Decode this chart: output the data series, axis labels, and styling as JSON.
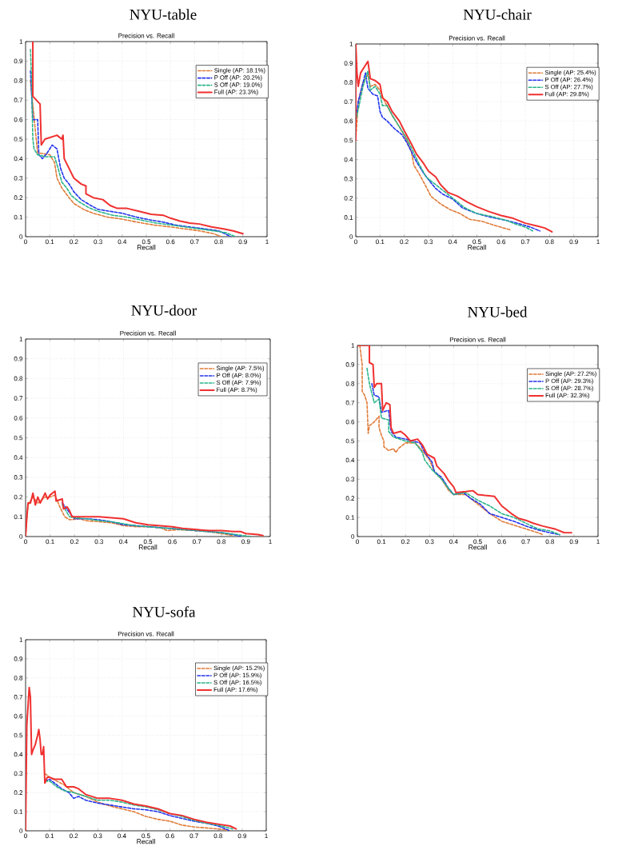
{
  "chart_data": [
    {
      "type": "line",
      "title": "NYU-table",
      "subtitle": "Precision vs. Recall",
      "xlabel": "Recall",
      "xlim": [
        0,
        1
      ],
      "ylim": [
        0,
        1
      ],
      "xticks": [
        0,
        0.1,
        0.2,
        0.3,
        0.4,
        0.5,
        0.6,
        0.7,
        0.8,
        0.9,
        1
      ],
      "yticks": [
        0,
        0.1,
        0.2,
        0.3,
        0.4,
        0.5,
        0.6,
        0.7,
        0.8,
        0.9,
        1
      ],
      "grid": true,
      "legend": "top right",
      "marker": "none",
      "series": [
        {
          "name": "Single (AP: 18.1%)",
          "color": "#e07b39",
          "line_style": "dashed",
          "x": [
            0.02,
            0.04,
            0.05,
            0.1,
            0.12,
            0.13,
            0.15,
            0.18,
            0.2,
            0.24,
            0.28,
            0.34,
            0.4,
            0.46,
            0.53,
            0.6,
            0.66,
            0.72,
            0.78,
            0.81
          ],
          "values": [
            0.8,
            0.55,
            0.43,
            0.42,
            0.38,
            0.3,
            0.25,
            0.2,
            0.17,
            0.14,
            0.12,
            0.1,
            0.09,
            0.075,
            0.06,
            0.05,
            0.04,
            0.03,
            0.015,
            0.0
          ]
        },
        {
          "name": "P Off (AP: 20.2%)",
          "color": "#2233ee",
          "line_style": "dashed",
          "x": [
            0.02,
            0.03,
            0.05,
            0.055,
            0.07,
            0.09,
            0.11,
            0.13,
            0.145,
            0.16,
            0.18,
            0.2,
            0.23,
            0.27,
            0.3,
            0.35,
            0.4,
            0.46,
            0.52,
            0.57,
            0.62,
            0.68,
            0.74,
            0.8,
            0.85
          ],
          "values": [
            0.85,
            0.6,
            0.6,
            0.42,
            0.4,
            0.43,
            0.47,
            0.45,
            0.35,
            0.3,
            0.27,
            0.23,
            0.19,
            0.16,
            0.14,
            0.13,
            0.12,
            0.1,
            0.085,
            0.075,
            0.06,
            0.05,
            0.04,
            0.03,
            0.0
          ]
        },
        {
          "name": "S Off (AP: 19.0%)",
          "color": "#2ab48a",
          "line_style": "dashed",
          "x": [
            0.02,
            0.025,
            0.03,
            0.035,
            0.05,
            0.08,
            0.12,
            0.135,
            0.15,
            0.17,
            0.19,
            0.22,
            0.26,
            0.3,
            0.36,
            0.42,
            0.48,
            0.54,
            0.6,
            0.66,
            0.72,
            0.78,
            0.83,
            0.87
          ],
          "values": [
            0.96,
            0.8,
            0.5,
            0.45,
            0.42,
            0.41,
            0.41,
            0.35,
            0.28,
            0.25,
            0.21,
            0.18,
            0.15,
            0.13,
            0.11,
            0.1,
            0.085,
            0.07,
            0.06,
            0.05,
            0.04,
            0.03,
            0.02,
            0.0
          ]
        },
        {
          "name": "Full (AP: 23.3%)",
          "color": "#f03030",
          "line_style": "solid",
          "x": [
            0.03,
            0.03,
            0.06,
            0.065,
            0.08,
            0.13,
            0.15,
            0.155,
            0.16,
            0.18,
            0.2,
            0.23,
            0.25,
            0.25,
            0.28,
            0.32,
            0.35,
            0.38,
            0.42,
            0.47,
            0.52,
            0.57,
            0.6,
            0.64,
            0.68,
            0.72,
            0.77,
            0.82,
            0.86,
            0.9
          ],
          "values": [
            1.0,
            0.72,
            0.68,
            0.47,
            0.5,
            0.52,
            0.5,
            0.52,
            0.4,
            0.35,
            0.3,
            0.27,
            0.26,
            0.22,
            0.2,
            0.19,
            0.16,
            0.145,
            0.145,
            0.13,
            0.115,
            0.11,
            0.095,
            0.08,
            0.07,
            0.065,
            0.05,
            0.04,
            0.03,
            0.015
          ]
        }
      ]
    },
    {
      "type": "line",
      "title": "NYU-chair",
      "subtitle": "Precision vs. Recall",
      "xlabel": "Recall",
      "xlim": [
        0,
        1
      ],
      "ylim": [
        0,
        1
      ],
      "xticks": [
        0,
        0.1,
        0.2,
        0.3,
        0.4,
        0.5,
        0.6,
        0.7,
        0.8,
        0.9,
        1
      ],
      "yticks": [
        0,
        0.1,
        0.2,
        0.3,
        0.4,
        0.5,
        0.6,
        0.7,
        0.8,
        0.9,
        1
      ],
      "grid": true,
      "legend": "top right",
      "marker": "none",
      "series": [
        {
          "name": "Single (AP: 25.4%)",
          "color": "#e07b39",
          "line_style": "dashed",
          "x": [
            0.0,
            0.01,
            0.03,
            0.05,
            0.06,
            0.08,
            0.1,
            0.12,
            0.15,
            0.18,
            0.21,
            0.23,
            0.24,
            0.26,
            0.29,
            0.31,
            0.35,
            0.39,
            0.43,
            0.47,
            0.52,
            0.57,
            0.61,
            0.64
          ],
          "values": [
            0.5,
            0.7,
            0.8,
            0.84,
            0.78,
            0.79,
            0.76,
            0.7,
            0.63,
            0.57,
            0.5,
            0.44,
            0.37,
            0.33,
            0.26,
            0.21,
            0.17,
            0.14,
            0.12,
            0.09,
            0.08,
            0.06,
            0.045,
            0.035
          ]
        },
        {
          "name": "P Off (AP: 26.4%)",
          "color": "#2233ee",
          "line_style": "dashed",
          "x": [
            0.0,
            0.01,
            0.02,
            0.04,
            0.05,
            0.07,
            0.09,
            0.1,
            0.11,
            0.13,
            0.16,
            0.19,
            0.21,
            0.23,
            0.25,
            0.28,
            0.31,
            0.33,
            0.36,
            0.4,
            0.44,
            0.5,
            0.56,
            0.62,
            0.68,
            0.72,
            0.76
          ],
          "values": [
            0.6,
            0.7,
            0.75,
            0.85,
            0.77,
            0.74,
            0.73,
            0.65,
            0.62,
            0.6,
            0.56,
            0.53,
            0.49,
            0.44,
            0.39,
            0.33,
            0.28,
            0.25,
            0.22,
            0.195,
            0.15,
            0.12,
            0.1,
            0.085,
            0.065,
            0.05,
            0.03
          ]
        },
        {
          "name": "S Off (AP: 27.7%)",
          "color": "#2ab48a",
          "line_style": "dashed",
          "x": [
            0.0,
            0.01,
            0.03,
            0.05,
            0.06,
            0.08,
            0.1,
            0.11,
            0.13,
            0.15,
            0.18,
            0.21,
            0.23,
            0.26,
            0.29,
            0.33,
            0.36,
            0.4,
            0.45,
            0.5,
            0.56,
            0.62,
            0.66,
            0.7,
            0.73
          ],
          "values": [
            0.6,
            0.66,
            0.78,
            0.86,
            0.76,
            0.78,
            0.74,
            0.68,
            0.68,
            0.63,
            0.57,
            0.51,
            0.46,
            0.38,
            0.31,
            0.27,
            0.24,
            0.2,
            0.15,
            0.12,
            0.105,
            0.085,
            0.065,
            0.05,
            0.03
          ]
        },
        {
          "name": "Full (AP: 29.8%)",
          "color": "#f03030",
          "line_style": "solid",
          "x": [
            0.0,
            0.0,
            0.005,
            0.01,
            0.02,
            0.03,
            0.05,
            0.06,
            0.08,
            0.1,
            0.11,
            0.13,
            0.15,
            0.18,
            0.2,
            0.23,
            0.25,
            0.28,
            0.3,
            0.33,
            0.35,
            0.38,
            0.42,
            0.46,
            0.5,
            0.55,
            0.6,
            0.65,
            0.7,
            0.75,
            0.78,
            0.81
          ],
          "values": [
            0.5,
            1.0,
            0.85,
            0.78,
            0.85,
            0.87,
            0.91,
            0.82,
            0.81,
            0.79,
            0.72,
            0.7,
            0.65,
            0.6,
            0.55,
            0.48,
            0.43,
            0.38,
            0.34,
            0.31,
            0.27,
            0.23,
            0.21,
            0.18,
            0.155,
            0.13,
            0.11,
            0.095,
            0.07,
            0.055,
            0.045,
            0.025
          ]
        }
      ]
    },
    {
      "type": "line",
      "title": "NYU-door",
      "subtitle": "Precision vs. Recall",
      "xlabel": "Recall",
      "xlim": [
        0,
        1
      ],
      "ylim": [
        0,
        1
      ],
      "xticks": [
        0,
        0.1,
        0.2,
        0.3,
        0.4,
        0.5,
        0.6,
        0.7,
        0.8,
        0.9,
        1
      ],
      "yticks": [
        0,
        0.1,
        0.2,
        0.3,
        0.4,
        0.5,
        0.6,
        0.7,
        0.8,
        0.9,
        1
      ],
      "grid": true,
      "legend": "top right",
      "marker": "none",
      "series": [
        {
          "name": "Single (AP: 7.5%)",
          "color": "#e07b39",
          "line_style": "dashed",
          "x": [
            0,
            0.01,
            0.03,
            0.05,
            0.08,
            0.1,
            0.12,
            0.14,
            0.16,
            0.18,
            0.22,
            0.25,
            0.3,
            0.35,
            0.4,
            0.45,
            0.5,
            0.55,
            0.58,
            0.62,
            0.7,
            0.75,
            0.8,
            0.85
          ],
          "values": [
            0,
            0.16,
            0.2,
            0.17,
            0.2,
            0.2,
            0.21,
            0.15,
            0.1,
            0.085,
            0.09,
            0.08,
            0.075,
            0.07,
            0.055,
            0.05,
            0.05,
            0.045,
            0.03,
            0.035,
            0.03,
            0.025,
            0.015,
            0.005
          ]
        },
        {
          "name": "P Off (AP: 8.0%)",
          "color": "#2233ee",
          "line_style": "dashed",
          "x": [
            0.15,
            0.18,
            0.2,
            0.25,
            0.3,
            0.35,
            0.4,
            0.45,
            0.5,
            0.55,
            0.6,
            0.65,
            0.7,
            0.75,
            0.8,
            0.85,
            0.88
          ],
          "values": [
            0.17,
            0.12,
            0.09,
            0.09,
            0.085,
            0.075,
            0.06,
            0.055,
            0.05,
            0.045,
            0.04,
            0.035,
            0.03,
            0.025,
            0.02,
            0.01,
            0.0
          ]
        },
        {
          "name": "S Off (AP: 7.9%)",
          "color": "#2ab48a",
          "line_style": "dashed",
          "x": [
            0.15,
            0.18,
            0.2,
            0.25,
            0.3,
            0.35,
            0.4,
            0.45,
            0.5,
            0.55,
            0.6,
            0.65,
            0.7,
            0.8,
            0.86,
            0.92
          ],
          "values": [
            0.16,
            0.1,
            0.095,
            0.09,
            0.08,
            0.075,
            0.065,
            0.055,
            0.05,
            0.045,
            0.04,
            0.035,
            0.03,
            0.02,
            0.01,
            0.0
          ]
        },
        {
          "name": "Full (AP: 8.7%)",
          "color": "#f03030",
          "line_style": "solid",
          "x": [
            0,
            0.005,
            0.01,
            0.02,
            0.03,
            0.04,
            0.05,
            0.06,
            0.08,
            0.09,
            0.1,
            0.12,
            0.125,
            0.15,
            0.155,
            0.17,
            0.18,
            0.19,
            0.22,
            0.26,
            0.3,
            0.35,
            0.4,
            0.45,
            0.5,
            0.55,
            0.6,
            0.65,
            0.7,
            0.75,
            0.8,
            0.85,
            0.88,
            0.9,
            0.95,
            0.97
          ],
          "values": [
            0,
            0.1,
            0.17,
            0.17,
            0.22,
            0.16,
            0.2,
            0.17,
            0.22,
            0.19,
            0.21,
            0.23,
            0.18,
            0.19,
            0.14,
            0.15,
            0.13,
            0.1,
            0.1,
            0.1,
            0.1,
            0.095,
            0.09,
            0.07,
            0.06,
            0.055,
            0.05,
            0.04,
            0.035,
            0.03,
            0.03,
            0.025,
            0.025,
            0.015,
            0.01,
            0.005
          ]
        }
      ]
    },
    {
      "type": "line",
      "title": "NYU-bed",
      "subtitle": "Precision vs. Recall",
      "xlabel": "Recall",
      "xlim": [
        0,
        1
      ],
      "ylim": [
        0,
        1
      ],
      "xticks": [
        0,
        0.1,
        0.2,
        0.3,
        0.4,
        0.5,
        0.6,
        0.7,
        0.8,
        0.9,
        1
      ],
      "yticks": [
        0,
        0.1,
        0.2,
        0.3,
        0.4,
        0.5,
        0.6,
        0.7,
        0.8,
        0.9,
        1
      ],
      "grid": true,
      "legend": "top right",
      "marker": "none",
      "series": [
        {
          "name": "Single (AP: 27.2%)",
          "color": "#e07b39",
          "line_style": "dashed",
          "x": [
            0.01,
            0.02,
            0.02,
            0.03,
            0.04,
            0.045,
            0.05,
            0.07,
            0.09,
            0.09,
            0.1,
            0.11,
            0.11,
            0.13,
            0.15,
            0.16,
            0.17,
            0.2,
            0.24,
            0.27,
            0.3,
            0.32,
            0.35,
            0.38,
            0.4,
            0.45,
            0.5,
            0.55,
            0.6,
            0.65,
            0.7,
            0.75,
            0.77
          ],
          "values": [
            1.0,
            0.9,
            0.76,
            0.74,
            0.7,
            0.54,
            0.58,
            0.6,
            0.63,
            0.57,
            0.53,
            0.5,
            0.47,
            0.45,
            0.46,
            0.44,
            0.46,
            0.49,
            0.49,
            0.45,
            0.4,
            0.34,
            0.3,
            0.24,
            0.22,
            0.22,
            0.17,
            0.12,
            0.08,
            0.06,
            0.04,
            0.02,
            0.01
          ]
        },
        {
          "name": "P Off (AP: 29.3%)",
          "color": "#2233ee",
          "line_style": "dashed",
          "x": [
            0.06,
            0.07,
            0.09,
            0.1,
            0.13,
            0.14,
            0.16,
            0.2,
            0.23,
            0.26,
            0.28,
            0.31,
            0.32,
            0.35,
            0.38,
            0.4,
            0.44,
            0.47,
            0.51,
            0.55,
            0.6,
            0.65,
            0.7,
            0.75,
            0.8,
            0.84
          ],
          "values": [
            0.8,
            0.74,
            0.73,
            0.65,
            0.66,
            0.55,
            0.52,
            0.51,
            0.5,
            0.49,
            0.44,
            0.39,
            0.34,
            0.31,
            0.25,
            0.22,
            0.23,
            0.2,
            0.17,
            0.12,
            0.1,
            0.08,
            0.055,
            0.035,
            0.02,
            0.01
          ]
        },
        {
          "name": "S Off (AP: 28.7%)",
          "color": "#2ab48a",
          "line_style": "dashed",
          "x": [
            0.04,
            0.05,
            0.07,
            0.09,
            0.1,
            0.13,
            0.13,
            0.15,
            0.2,
            0.24,
            0.27,
            0.28,
            0.31,
            0.35,
            0.38,
            0.4,
            0.45,
            0.5,
            0.55,
            0.6,
            0.65,
            0.7,
            0.75,
            0.8,
            0.84
          ],
          "values": [
            0.88,
            0.8,
            0.7,
            0.72,
            0.62,
            0.61,
            0.55,
            0.52,
            0.5,
            0.49,
            0.44,
            0.4,
            0.35,
            0.3,
            0.25,
            0.22,
            0.23,
            0.19,
            0.16,
            0.12,
            0.1,
            0.07,
            0.04,
            0.03,
            0.01
          ]
        },
        {
          "name": "Full (AP: 32.3%)",
          "color": "#f03030",
          "line_style": "solid",
          "x": [
            0.0,
            0.05,
            0.05,
            0.065,
            0.07,
            0.08,
            0.1,
            0.105,
            0.12,
            0.135,
            0.14,
            0.15,
            0.18,
            0.2,
            0.22,
            0.25,
            0.27,
            0.29,
            0.32,
            0.33,
            0.36,
            0.38,
            0.4,
            0.41,
            0.45,
            0.48,
            0.5,
            0.53,
            0.57,
            0.6,
            0.64,
            0.67,
            0.7,
            0.73,
            0.77,
            0.82,
            0.86,
            0.89
          ],
          "values": [
            1.0,
            1.0,
            0.91,
            0.9,
            0.78,
            0.8,
            0.8,
            0.66,
            0.7,
            0.69,
            0.57,
            0.54,
            0.55,
            0.53,
            0.5,
            0.51,
            0.48,
            0.43,
            0.41,
            0.37,
            0.33,
            0.29,
            0.26,
            0.23,
            0.235,
            0.24,
            0.22,
            0.215,
            0.21,
            0.16,
            0.12,
            0.095,
            0.085,
            0.07,
            0.055,
            0.04,
            0.02,
            0.02
          ]
        }
      ]
    },
    {
      "type": "line",
      "title": "NYU-sofa",
      "subtitle": "Precision vs. Recall",
      "xlabel": "Recall",
      "xlim": [
        0,
        1
      ],
      "ylim": [
        0,
        1
      ],
      "xticks": [
        0,
        0.1,
        0.2,
        0.3,
        0.4,
        0.5,
        0.6,
        0.7,
        0.8,
        0.9,
        1
      ],
      "yticks": [
        0,
        0.1,
        0.2,
        0.3,
        0.4,
        0.5,
        0.6,
        0.7,
        0.8,
        0.9,
        1
      ],
      "grid": true,
      "legend": "top right",
      "marker": "none",
      "series": [
        {
          "name": "Single (AP: 15.2%)",
          "color": "#e07b39",
          "line_style": "dashed",
          "x": [
            0.08,
            0.1,
            0.13,
            0.16,
            0.2,
            0.25,
            0.3,
            0.35,
            0.4,
            0.45,
            0.5,
            0.55,
            0.6,
            0.65,
            0.7,
            0.75,
            0.8,
            0.85
          ],
          "values": [
            0.3,
            0.28,
            0.26,
            0.24,
            0.2,
            0.18,
            0.15,
            0.13,
            0.115,
            0.1,
            0.075,
            0.06,
            0.05,
            0.03,
            0.02,
            0.015,
            0.01,
            0.0
          ]
        },
        {
          "name": "P Off (AP: 15.9%)",
          "color": "#2233ee",
          "line_style": "dashed",
          "x": [
            0.08,
            0.1,
            0.12,
            0.15,
            0.18,
            0.2,
            0.22,
            0.25,
            0.3,
            0.35,
            0.4,
            0.45,
            0.5,
            0.55,
            0.6,
            0.65,
            0.7,
            0.75,
            0.8,
            0.85
          ],
          "values": [
            0.26,
            0.27,
            0.25,
            0.22,
            0.2,
            0.17,
            0.18,
            0.16,
            0.145,
            0.135,
            0.125,
            0.115,
            0.11,
            0.1,
            0.08,
            0.065,
            0.05,
            0.04,
            0.025,
            0.0
          ]
        },
        {
          "name": "S Off (AP: 16.5%)",
          "color": "#2ab48a",
          "line_style": "dashed",
          "x": [
            0.08,
            0.1,
            0.13,
            0.16,
            0.2,
            0.25,
            0.3,
            0.35,
            0.4,
            0.45,
            0.5,
            0.55,
            0.6,
            0.65,
            0.7,
            0.75,
            0.8,
            0.86
          ],
          "values": [
            0.26,
            0.26,
            0.23,
            0.21,
            0.2,
            0.18,
            0.16,
            0.16,
            0.15,
            0.135,
            0.125,
            0.11,
            0.09,
            0.075,
            0.055,
            0.04,
            0.03,
            0.01
          ]
        },
        {
          "name": "Full (AP: 17.6%)",
          "color": "#f03030",
          "line_style": "solid",
          "x": [
            0,
            0.005,
            0.01,
            0.015,
            0.02,
            0.025,
            0.03,
            0.04,
            0.05,
            0.055,
            0.06,
            0.065,
            0.07,
            0.075,
            0.08,
            0.09,
            0.1,
            0.12,
            0.15,
            0.17,
            0.2,
            0.22,
            0.25,
            0.3,
            0.35,
            0.4,
            0.45,
            0.5,
            0.55,
            0.6,
            0.65,
            0.7,
            0.75,
            0.8,
            0.85,
            0.875
          ],
          "values": [
            0,
            0.55,
            0.65,
            0.75,
            0.7,
            0.4,
            0.42,
            0.45,
            0.5,
            0.53,
            0.48,
            0.4,
            0.4,
            0.44,
            0.25,
            0.28,
            0.28,
            0.27,
            0.27,
            0.23,
            0.23,
            0.22,
            0.19,
            0.17,
            0.17,
            0.16,
            0.14,
            0.13,
            0.115,
            0.09,
            0.08,
            0.06,
            0.045,
            0.035,
            0.025,
            0.01
          ]
        }
      ]
    }
  ]
}
